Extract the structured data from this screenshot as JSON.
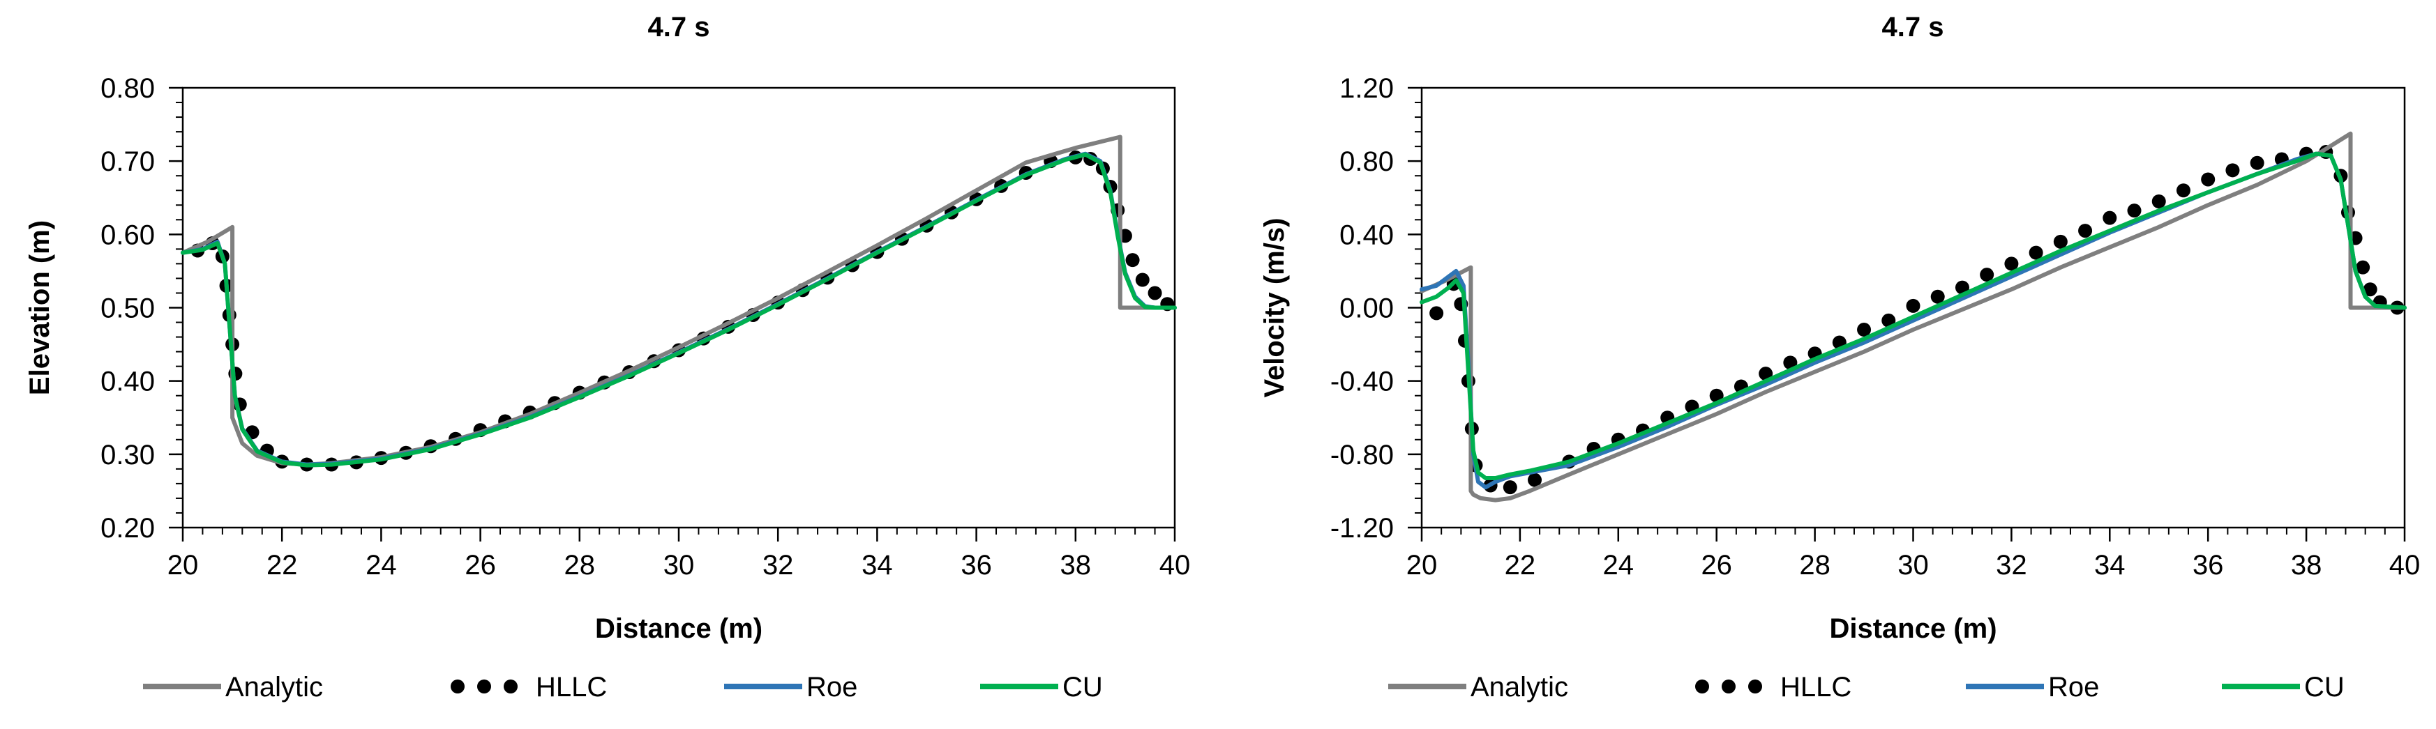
{
  "chart_data": [
    {
      "type": "line",
      "title": "4.7 s",
      "xlabel": "Distance (m)",
      "ylabel": "Elevation (m)",
      "xlim": [
        20,
        40
      ],
      "ylim": [
        0.2,
        0.8
      ],
      "xticks": [
        20,
        22,
        24,
        26,
        28,
        30,
        32,
        34,
        36,
        38,
        40
      ],
      "yticks": [
        0.2,
        0.3,
        0.4,
        0.5,
        0.6,
        0.7,
        0.8
      ],
      "xtick_labels": [
        "20",
        "22",
        "24",
        "26",
        "28",
        "30",
        "32",
        "34",
        "36",
        "38",
        "40"
      ],
      "ytick_labels": [
        "0.20",
        "0.30",
        "0.40",
        "0.50",
        "0.60",
        "0.70",
        "0.80"
      ],
      "series": [
        {
          "name": "Analytic",
          "style": "line",
          "color": "#7f7f7f",
          "x": [
            20,
            20.5,
            21.0,
            21.0,
            21.2,
            21.5,
            22.0,
            22.5,
            23.0,
            24,
            25,
            26,
            27,
            28,
            29,
            30,
            31,
            32,
            33,
            34,
            35,
            36,
            37,
            38,
            38.9,
            38.9,
            40
          ],
          "y": [
            0.575,
            0.59,
            0.61,
            0.35,
            0.315,
            0.298,
            0.288,
            0.286,
            0.288,
            0.296,
            0.31,
            0.33,
            0.355,
            0.384,
            0.414,
            0.446,
            0.479,
            0.513,
            0.549,
            0.585,
            0.622,
            0.66,
            0.698,
            0.718,
            0.733,
            0.5,
            0.5
          ]
        },
        {
          "name": "HLLC",
          "style": "dots",
          "color": "#000000",
          "x": [
            20.3,
            20.6,
            20.8,
            20.88,
            20.94,
            21.0,
            21.06,
            21.15,
            21.4,
            21.7,
            22.0,
            22.5,
            23.0,
            23.5,
            24.0,
            24.5,
            25.0,
            25.5,
            26.0,
            26.5,
            27.0,
            27.5,
            28.0,
            28.5,
            29.0,
            29.5,
            30.0,
            30.5,
            31.0,
            31.5,
            32.0,
            32.5,
            33.0,
            33.5,
            34.0,
            34.5,
            35.0,
            35.5,
            36.0,
            36.5,
            37.0,
            37.5,
            38.0,
            38.3,
            38.55,
            38.7,
            38.85,
            39.0,
            39.15,
            39.35,
            39.6,
            39.85
          ],
          "y": [
            0.578,
            0.588,
            0.57,
            0.53,
            0.49,
            0.45,
            0.41,
            0.368,
            0.33,
            0.305,
            0.29,
            0.286,
            0.286,
            0.289,
            0.295,
            0.302,
            0.311,
            0.321,
            0.333,
            0.345,
            0.357,
            0.37,
            0.384,
            0.398,
            0.412,
            0.427,
            0.442,
            0.458,
            0.474,
            0.49,
            0.507,
            0.524,
            0.541,
            0.558,
            0.576,
            0.594,
            0.612,
            0.63,
            0.648,
            0.666,
            0.684,
            0.7,
            0.705,
            0.703,
            0.69,
            0.665,
            0.633,
            0.598,
            0.565,
            0.538,
            0.52,
            0.505
          ]
        },
        {
          "name": "Roe",
          "style": "line",
          "color": "#2e75b6",
          "x": [
            20,
            20.4,
            20.7,
            20.85,
            20.95,
            21.05,
            21.2,
            21.5,
            22.0,
            22.5,
            23.0,
            24,
            25,
            26,
            27,
            28,
            29,
            30,
            31,
            32,
            33,
            34,
            35,
            36,
            37,
            37.8,
            38.2,
            38.5,
            38.7,
            38.85,
            39.0,
            39.2,
            39.4,
            39.6,
            40
          ],
          "y": [
            0.575,
            0.58,
            0.59,
            0.56,
            0.47,
            0.38,
            0.335,
            0.305,
            0.29,
            0.286,
            0.287,
            0.294,
            0.308,
            0.328,
            0.351,
            0.379,
            0.408,
            0.439,
            0.471,
            0.505,
            0.54,
            0.576,
            0.611,
            0.647,
            0.682,
            0.703,
            0.71,
            0.7,
            0.66,
            0.6,
            0.548,
            0.515,
            0.502,
            0.5,
            0.5
          ]
        },
        {
          "name": "CU",
          "style": "line",
          "color": "#00b050",
          "x": [
            20,
            20.4,
            20.7,
            20.85,
            20.95,
            21.05,
            21.2,
            21.5,
            22.0,
            22.5,
            23.0,
            24,
            25,
            26,
            27,
            28,
            29,
            30,
            31,
            32,
            33,
            34,
            35,
            36,
            37,
            37.8,
            38.2,
            38.5,
            38.7,
            38.85,
            39.0,
            39.2,
            39.4,
            39.6,
            40
          ],
          "y": [
            0.575,
            0.579,
            0.588,
            0.56,
            0.47,
            0.38,
            0.334,
            0.304,
            0.289,
            0.285,
            0.286,
            0.293,
            0.307,
            0.327,
            0.35,
            0.378,
            0.407,
            0.438,
            0.47,
            0.504,
            0.539,
            0.575,
            0.61,
            0.646,
            0.681,
            0.702,
            0.709,
            0.698,
            0.658,
            0.598,
            0.546,
            0.513,
            0.501,
            0.5,
            0.5
          ]
        }
      ]
    },
    {
      "type": "line",
      "title": "4.7 s",
      "xlabel": "Distance (m)",
      "ylabel": "Velocity (m/s)",
      "xlim": [
        20,
        40
      ],
      "ylim": [
        -1.2,
        1.2
      ],
      "xticks": [
        20,
        22,
        24,
        26,
        28,
        30,
        32,
        34,
        36,
        38,
        40
      ],
      "yticks": [
        -1.2,
        -0.8,
        -0.4,
        0.0,
        0.4,
        0.8,
        1.2
      ],
      "xtick_labels": [
        "20",
        "22",
        "24",
        "26",
        "28",
        "30",
        "32",
        "34",
        "36",
        "38",
        "40"
      ],
      "ytick_labels": [
        "-1.20",
        "-0.80",
        "-0.40",
        "0.00",
        "0.40",
        "0.80",
        "1.20"
      ],
      "series": [
        {
          "name": "Analytic",
          "style": "line",
          "color": "#7f7f7f",
          "x": [
            20,
            20.5,
            21.0,
            21.0,
            21.05,
            21.2,
            21.5,
            21.8,
            22.2,
            23,
            24,
            25,
            26,
            27,
            28,
            29,
            30,
            31,
            32,
            33,
            34,
            35,
            36,
            37,
            38,
            38.9,
            38.9,
            40
          ],
          "y": [
            0.09,
            0.15,
            0.22,
            -1.0,
            -1.02,
            -1.04,
            -1.05,
            -1.04,
            -1.0,
            -0.91,
            -0.8,
            -0.69,
            -0.58,
            -0.46,
            -0.35,
            -0.24,
            -0.12,
            -0.01,
            0.1,
            0.22,
            0.33,
            0.44,
            0.56,
            0.67,
            0.8,
            0.95,
            0.0,
            0.0
          ]
        },
        {
          "name": "HLLC",
          "style": "dots",
          "color": "#000000",
          "x": [
            20.3,
            20.65,
            20.8,
            20.88,
            20.95,
            21.02,
            21.1,
            21.4,
            21.8,
            22.3,
            23.0,
            23.5,
            24.0,
            24.5,
            25.0,
            25.5,
            26.0,
            26.5,
            27.0,
            27.5,
            28.0,
            28.5,
            29.0,
            29.5,
            30.0,
            30.5,
            31.0,
            31.5,
            32.0,
            32.5,
            33.0,
            33.5,
            34.0,
            34.5,
            35.0,
            35.5,
            36.0,
            36.5,
            37.0,
            37.5,
            38.0,
            38.4,
            38.7,
            38.85,
            39.0,
            39.15,
            39.3,
            39.5,
            39.85
          ],
          "y": [
            -0.03,
            0.13,
            0.02,
            -0.18,
            -0.4,
            -0.66,
            -0.86,
            -0.97,
            -0.98,
            -0.94,
            -0.84,
            -0.77,
            -0.72,
            -0.67,
            -0.6,
            -0.54,
            -0.48,
            -0.43,
            -0.36,
            -0.3,
            -0.25,
            -0.19,
            -0.12,
            -0.07,
            0.01,
            0.06,
            0.11,
            0.18,
            0.24,
            0.3,
            0.36,
            0.42,
            0.49,
            0.53,
            0.58,
            0.64,
            0.7,
            0.75,
            0.79,
            0.81,
            0.84,
            0.85,
            0.72,
            0.52,
            0.38,
            0.22,
            0.1,
            0.03,
            0.0
          ]
        },
        {
          "name": "Roe",
          "style": "line",
          "color": "#2e75b6",
          "x": [
            20,
            20.3,
            20.55,
            20.7,
            20.85,
            20.95,
            21.05,
            21.15,
            21.3,
            21.5,
            21.8,
            22.2,
            23,
            24,
            25,
            26,
            27,
            28,
            29,
            30,
            31,
            32,
            33,
            34,
            35,
            36,
            37,
            37.8,
            38.2,
            38.5,
            38.7,
            38.85,
            39.0,
            39.2,
            39.4,
            40
          ],
          "y": [
            0.1,
            0.12,
            0.17,
            0.2,
            0.12,
            -0.3,
            -0.8,
            -0.95,
            -0.98,
            -0.95,
            -0.92,
            -0.9,
            -0.86,
            -0.76,
            -0.65,
            -0.53,
            -0.42,
            -0.3,
            -0.19,
            -0.07,
            0.05,
            0.17,
            0.29,
            0.41,
            0.52,
            0.63,
            0.73,
            0.81,
            0.84,
            0.83,
            0.7,
            0.45,
            0.2,
            0.06,
            0.01,
            0.0
          ]
        },
        {
          "name": "CU",
          "style": "line",
          "color": "#00b050",
          "x": [
            20,
            20.3,
            20.55,
            20.7,
            20.85,
            20.95,
            21.05,
            21.15,
            21.3,
            21.5,
            21.8,
            22.2,
            23,
            24,
            25,
            26,
            27,
            28,
            29,
            30,
            31,
            32,
            33,
            34,
            35,
            36,
            37,
            37.8,
            38.2,
            38.5,
            38.7,
            38.85,
            39.0,
            39.2,
            39.4,
            40
          ],
          "y": [
            0.03,
            0.06,
            0.11,
            0.15,
            0.08,
            -0.35,
            -0.78,
            -0.9,
            -0.93,
            -0.93,
            -0.91,
            -0.89,
            -0.84,
            -0.74,
            -0.63,
            -0.52,
            -0.4,
            -0.28,
            -0.17,
            -0.05,
            0.07,
            0.19,
            0.31,
            0.42,
            0.53,
            0.63,
            0.73,
            0.8,
            0.84,
            0.83,
            0.7,
            0.45,
            0.2,
            0.06,
            0.01,
            0.0
          ]
        }
      ]
    }
  ]
}
